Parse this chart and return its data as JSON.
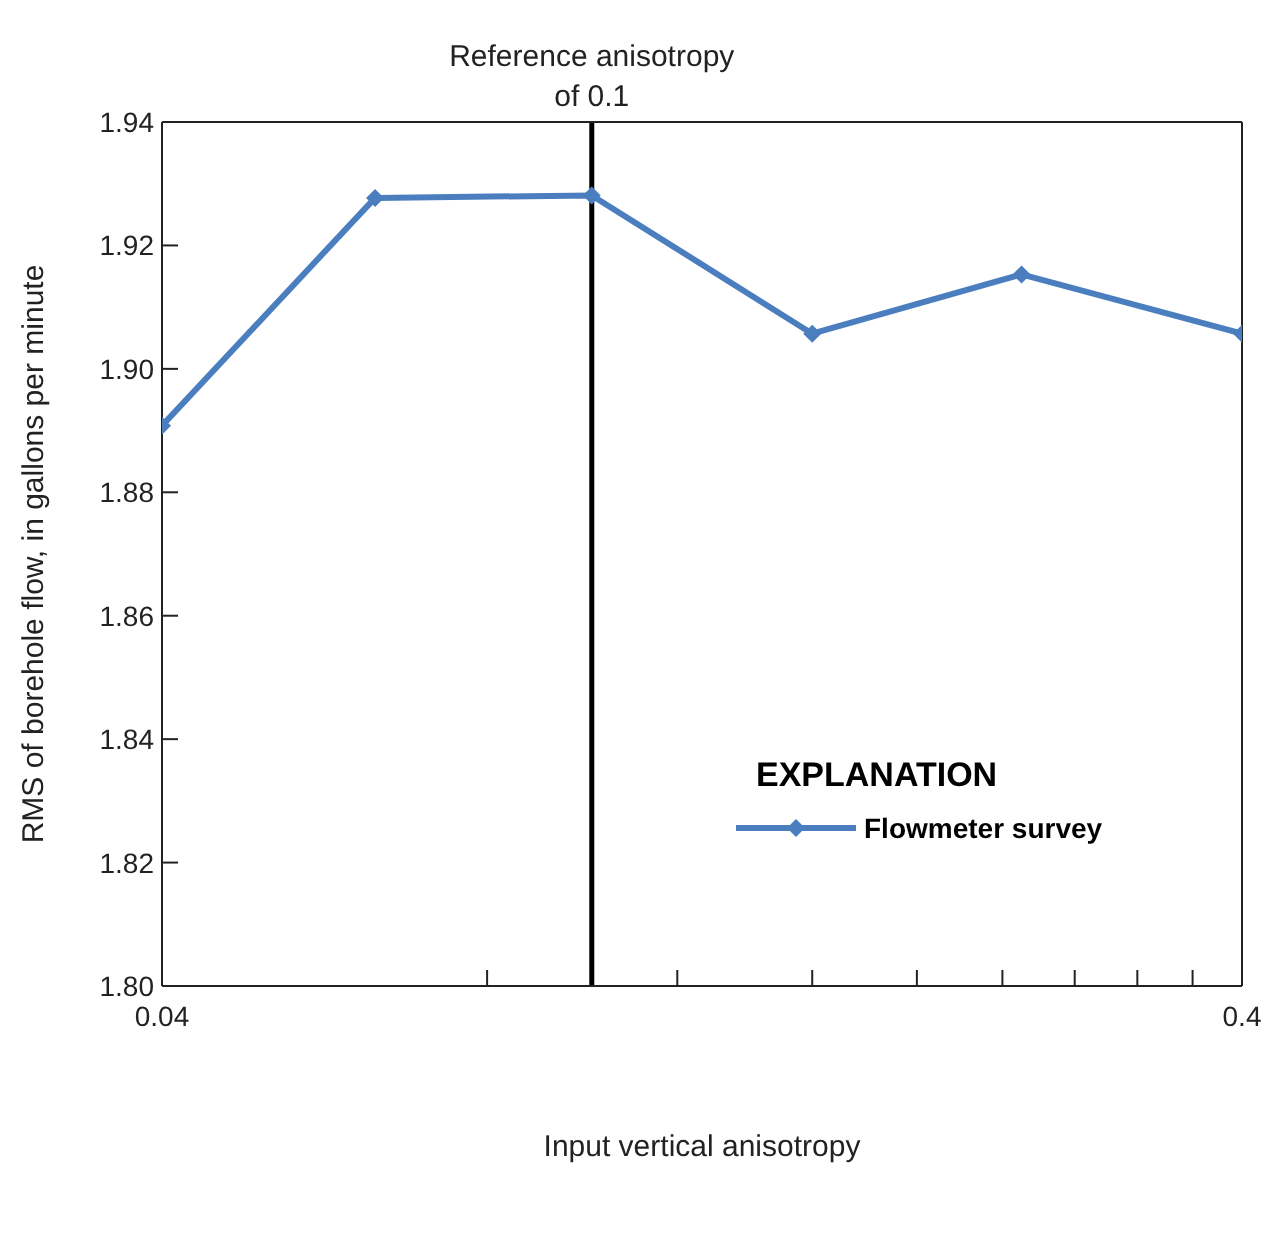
{
  "chart_data": {
    "type": "line",
    "xlabel": "Input vertical anisotropy",
    "ylabel": "RMS of borehole flow, in gallons per minute",
    "legend_title": "EXPLANATION",
    "log": "x",
    "x": [
      0.04,
      0.063,
      0.1,
      0.16,
      0.25,
      0.4
    ],
    "series": [
      {
        "name": "Flowmeter survey",
        "color": "#4a7ebf",
        "values": [
          1.8908,
          1.9277,
          1.9281,
          1.9057,
          1.9153,
          1.9057
        ]
      }
    ],
    "xlim": [
      0.04,
      0.4
    ],
    "xticks": [
      {
        "value": 0.04,
        "label": "0.04"
      },
      {
        "value": 0.08,
        "label": null
      },
      {
        "value": 0.12,
        "label": null
      },
      {
        "value": 0.16,
        "label": null
      },
      {
        "value": 0.2,
        "label": null
      },
      {
        "value": 0.24,
        "label": null
      },
      {
        "value": 0.28,
        "label": null
      },
      {
        "value": 0.32,
        "label": null
      },
      {
        "value": 0.36,
        "label": null
      },
      {
        "value": 0.4,
        "label": "0.4"
      }
    ],
    "ylim": [
      1.8,
      1.94
    ],
    "yticks": [
      {
        "value": 1.8,
        "label": "1.80"
      },
      {
        "value": 1.82,
        "label": "1.82"
      },
      {
        "value": 1.84,
        "label": "1.84"
      },
      {
        "value": 1.86,
        "label": "1.86"
      },
      {
        "value": 1.88,
        "label": "1.88"
      },
      {
        "value": 1.9,
        "label": "1.90"
      },
      {
        "value": 1.92,
        "label": "1.92"
      },
      {
        "value": 1.94,
        "label": "1.94"
      }
    ],
    "ref_lines": [
      {
        "axis": "x",
        "value": 0.1,
        "label": "Reference anisotropy of 0.1",
        "color": "#000000"
      }
    ],
    "grid": false,
    "legend": "right",
    "marker": "diamond",
    "line_style": "solid"
  }
}
